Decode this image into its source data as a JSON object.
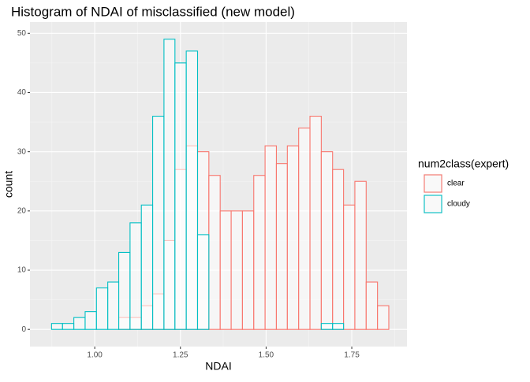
{
  "chart_data": {
    "type": "histogram",
    "title": "Histogram of NDAI of misclassified (new model)",
    "x_label": "NDAI",
    "y_label": "count",
    "legend_title": "num2class(expert)",
    "legend_position": "right",
    "bins": [
      0.874,
      0.906,
      0.939,
      0.972,
      1.005,
      1.038,
      1.07,
      1.103,
      1.136,
      1.169,
      1.202,
      1.234,
      1.267,
      1.3,
      1.333,
      1.366,
      1.398,
      1.431,
      1.464,
      1.497,
      1.53,
      1.562,
      1.595,
      1.628,
      1.661,
      1.694,
      1.726,
      1.759,
      1.792,
      1.825,
      1.858
    ],
    "series": [
      {
        "name": "clear",
        "color": "#F8766D",
        "values": [
          0,
          0,
          0,
          0,
          0,
          0,
          2,
          2,
          4,
          6,
          15,
          27,
          31,
          30,
          26,
          20,
          20,
          20,
          26,
          31,
          28,
          31,
          34,
          36,
          30,
          27,
          21,
          25,
          8,
          4
        ]
      },
      {
        "name": "cloudy",
        "color": "#00BFC4",
        "values": [
          1,
          1,
          2,
          3,
          7,
          8,
          13,
          18,
          21,
          36,
          49,
          45,
          47,
          16,
          0,
          0,
          0,
          0,
          0,
          0,
          0,
          0,
          0,
          0,
          1,
          1,
          0,
          0,
          0,
          0
        ]
      }
    ],
    "xlim": [
      0.811,
      1.911
    ],
    "ylim": [
      -2.9,
      51.9
    ],
    "xticks": [
      {
        "value": 1,
        "label": "1.00"
      },
      {
        "value": 1.25,
        "label": "1.25"
      },
      {
        "value": 1.5,
        "label": "1.50"
      },
      {
        "value": 1.75,
        "label": "1.75"
      }
    ],
    "yticks": [
      0,
      10,
      20,
      30,
      40,
      50
    ],
    "xminor": [
      0.875,
      1.125,
      1.375,
      1.625,
      1.875
    ],
    "yminor": [
      5,
      15,
      25,
      35,
      45
    ],
    "grid": true
  }
}
